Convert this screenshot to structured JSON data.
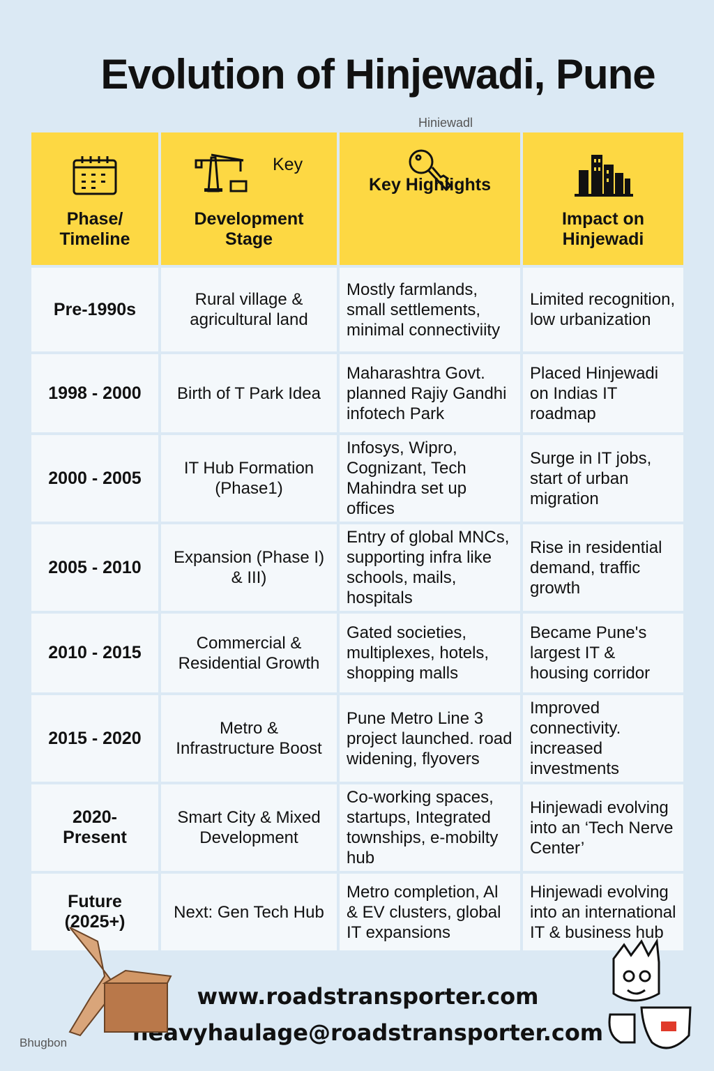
{
  "title": "Evolution of Hinjewadi, Pune",
  "subtitle": "Hiniewadl",
  "header": {
    "phase": "Phase/ Timeline",
    "dev_key": "Key",
    "dev": "Development Stage",
    "highlights": "Key Highlights",
    "impact": "Impact on Hinjewadi",
    "icons": [
      "calendar-icon",
      "crane-icon",
      "key-icon",
      "buildings-icon"
    ]
  },
  "rows": [
    {
      "phase": "Pre-1990s",
      "stage": "Rural village & agricultural land",
      "highlights": "Mostly farmlands, small settlements, minimal connectiviity",
      "impact": "Limited recognition, low urbanization"
    },
    {
      "phase": "1998 - 2000",
      "stage": "Birth of T Park Idea",
      "highlights": "Maharashtra Govt. planned Rajiy Gandhi infotech Park",
      "impact": "Placed Hinjewadi on Indias IT roadmap"
    },
    {
      "phase": "2000 - 2005",
      "stage": "IT Hub Formation (Phase1)",
      "highlights": "Infosys, Wipro, Cognizant, Tech Mahindra set up offices",
      "impact": "Surge in IT jobs, start of urban migration"
    },
    {
      "phase": "2005 - 2010",
      "stage": "Expansion (Phase I) & III)",
      "highlights": "Entry of global MNCs, supporting infra like schools, mails, hospitals",
      "impact": "Rise in residential demand, traffic growth"
    },
    {
      "phase": "2010 - 2015",
      "stage": "Commercial & Residential Growth",
      "highlights": "Gated societies, multiplexes, hotels, shopping malls",
      "impact": "Became Pune's largest IT & housing corridor"
    },
    {
      "phase": "2015 - 2020",
      "stage": "Metro & Infrastructure Boost",
      "highlights": "Pune Metro Line 3 project launched. road widening, flyovers",
      "impact": "Improved connectivity. increased investments"
    },
    {
      "phase": "2020- Present",
      "stage": "Smart City & Mixed Development",
      "highlights": "Co-working spaces, startups, Integrated townships, e-mobilty hub",
      "impact": "Hinjewadi evolving into an ‘Tech Nerve Center’"
    },
    {
      "phase": "Future (2025+)",
      "stage": "Next: Gen Tech Hub",
      "highlights": "Metro completion, Al & EV clusters, global IT expansions",
      "impact": "Hinjewadi evolving into an international IT & business hub"
    }
  ],
  "footer": {
    "website": "www.roadstransporter.com",
    "email": "heavyhaulage@roadstransporter.com",
    "brand": "Bhugbon"
  },
  "colors": {
    "header": "#fdd843",
    "background": "#dbe9f4"
  }
}
